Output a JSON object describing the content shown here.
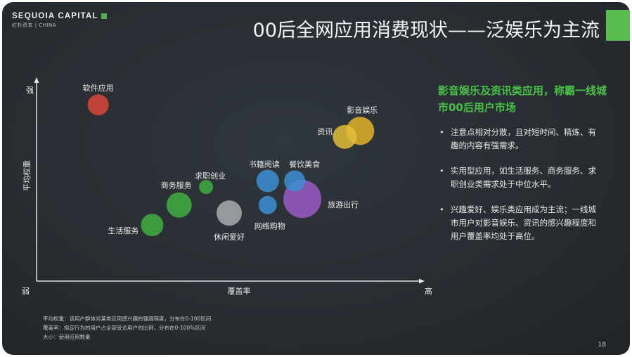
{
  "brand": {
    "name": "SEQUOIA CAPITAL",
    "sub": "红杉资本 | CHINA"
  },
  "title": "00后全网应用消费现状——泛娱乐为主流",
  "colors": {
    "background": "#272c31",
    "accent": "#5bbd4f",
    "headline": "#49c147"
  },
  "chart_data": {
    "type": "scatter",
    "subtype": "bubble",
    "xlabel": "覆盖率",
    "ylabel": "平均权重",
    "x_low_label": "弱",
    "x_high_label": "高",
    "y_high_label": "强",
    "xlim": [
      0,
      100
    ],
    "ylim": [
      0,
      100
    ],
    "grid": false,
    "points": [
      {
        "label": "软件应用",
        "x": 16,
        "y": 88,
        "size": 15,
        "color": "#d9473a"
      },
      {
        "label": "影音娱乐",
        "x": 84,
        "y": 75,
        "size": 20,
        "color": "#e0b12a"
      },
      {
        "label": "资讯",
        "x": 80,
        "y": 72,
        "size": 17,
        "color": "#e2bd3a"
      },
      {
        "label": "书籍阅读",
        "x": 60,
        "y": 50,
        "size": 16,
        "color": "#3b8fd4"
      },
      {
        "label": "餐饮美食",
        "x": 67,
        "y": 50,
        "size": 15,
        "color": "#3b8fd4"
      },
      {
        "label": "旅游出行",
        "x": 69,
        "y": 41,
        "size": 27,
        "color": "#9a5cc6"
      },
      {
        "label": "网络购物",
        "x": 60,
        "y": 38,
        "size": 13,
        "color": "#3b8fd4"
      },
      {
        "label": "求职创业",
        "x": 44,
        "y": 47,
        "size": 10,
        "color": "#3fae3f"
      },
      {
        "label": "商务服务",
        "x": 37,
        "y": 38,
        "size": 18,
        "color": "#3fae3f"
      },
      {
        "label": "生活服务",
        "x": 30,
        "y": 28,
        "size": 16,
        "color": "#3fae3f"
      },
      {
        "label": "休闲爱好",
        "x": 50,
        "y": 34,
        "size": 18,
        "color": "#a8acb0"
      }
    ]
  },
  "side": {
    "headline": "影音娱乐及资讯类应用，称霸一线城市00后用户市场",
    "bullets": [
      "注意点相对分散，且对短时间、精炼、有趣的内容有强需求。",
      "实用型应用，如生活服务、商务服务、求职创业类需求处于中位水平。",
      "兴趣爱好、娱乐类应用成为主流；一线城市用户对影音娱乐、资讯的感兴趣程度和用户覆盖率均处于高位。"
    ]
  },
  "notes": [
    "平均权重：该用户群体对某类应用感兴趣的强弱程度，分布在0-100区间",
    "覆盖率：指定行为的用户占全部受访用户的比例，分布在0-100%区间",
    "大小：使用应用数量"
  ],
  "page_number": "18"
}
